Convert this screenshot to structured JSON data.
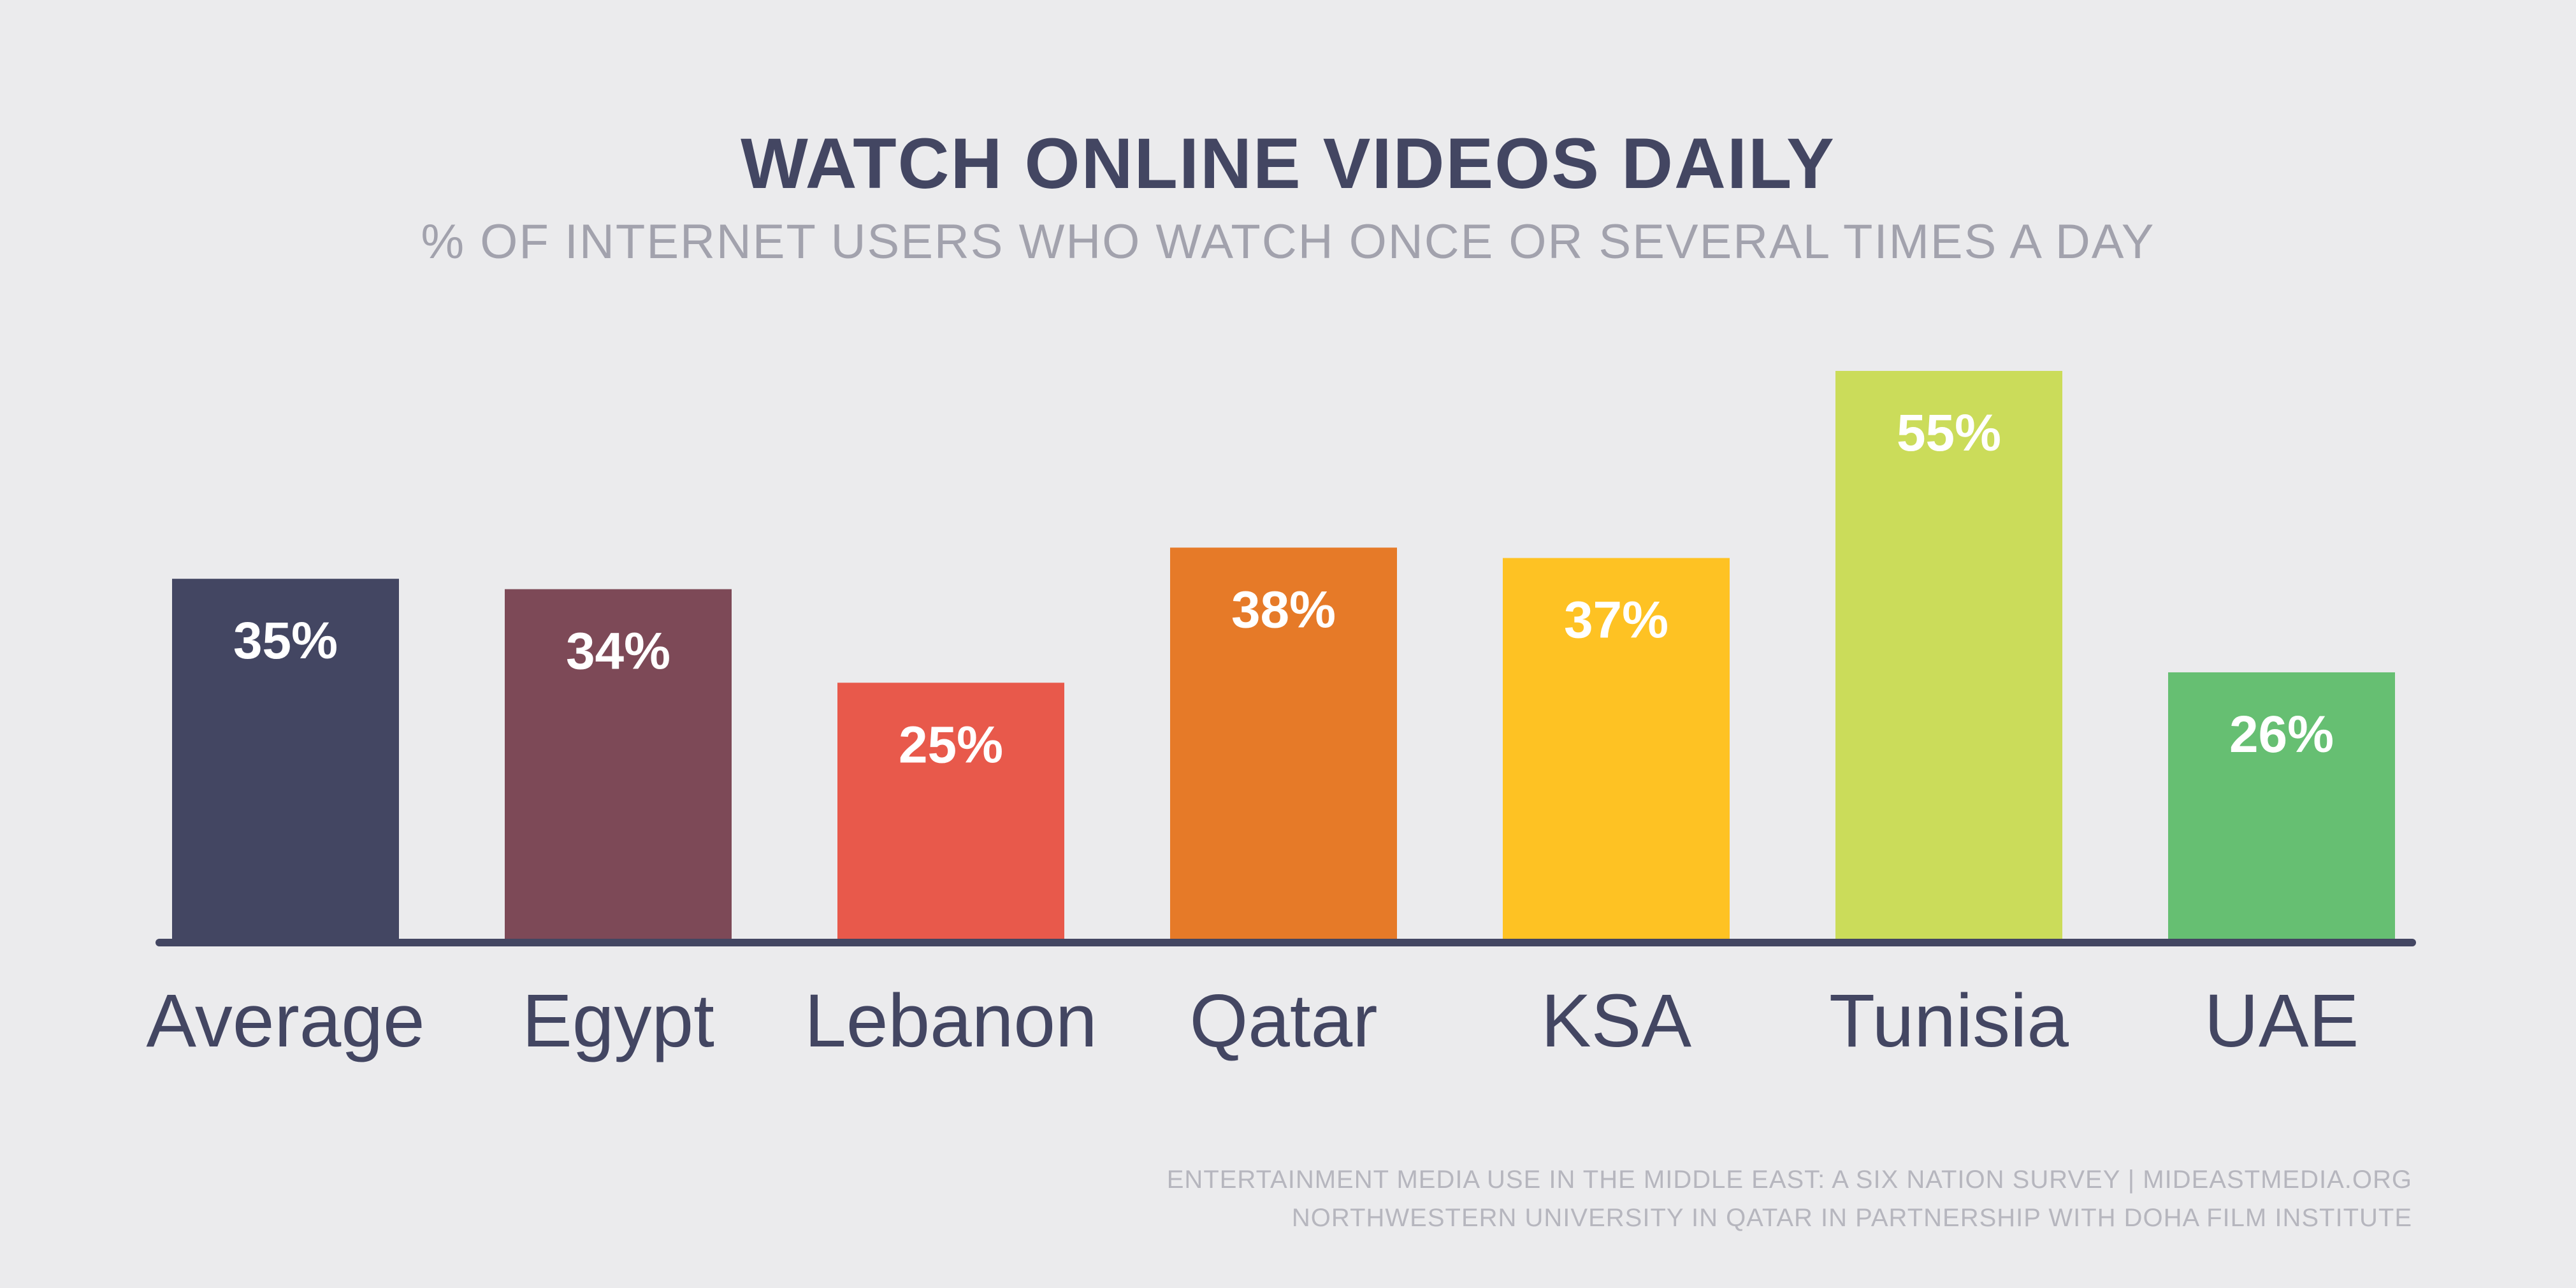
{
  "chart_data": {
    "type": "bar",
    "title": "WATCH ONLINE VIDEOS DAILY",
    "subtitle": "% OF INTERNET USERS WHO WATCH ONCE OR SEVERAL TIMES A DAY",
    "categories": [
      "Average",
      "Egypt",
      "Lebanon",
      "Qatar",
      "KSA",
      "Tunisia",
      "UAE"
    ],
    "values": [
      35,
      34,
      25,
      38,
      37,
      55,
      26
    ],
    "value_labels": [
      "35%",
      "34%",
      "25%",
      "38%",
      "37%",
      "55%",
      "26%"
    ],
    "colors": [
      "#434662",
      "#7d4957",
      "#e8594b",
      "#e67a28",
      "#fec223",
      "#cbdc5a",
      "#66bf72"
    ],
    "axis_color": "#434662",
    "ylim": [
      0,
      55
    ],
    "grid": false,
    "legend": "none"
  },
  "source": {
    "line1": "ENTERTAINMENT MEDIA USE IN THE MIDDLE EAST: A SIX NATION SURVEY | MIDEASTMEDIA.ORG",
    "line2": "NORTHWESTERN UNIVERSITY IN QATAR IN PARTNERSHIP WITH DOHA FILM INSTITUTE"
  }
}
